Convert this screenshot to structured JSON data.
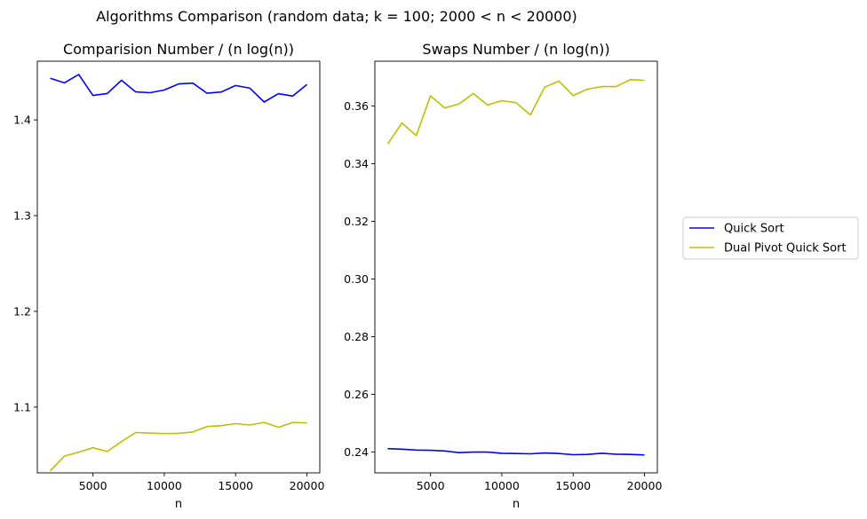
{
  "suptitle": "Algorithms Comparison (random data;  k = 100;  2000 < n < 20000)",
  "legend": {
    "placement": "right-center",
    "entries": [
      {
        "label": "Quick Sort",
        "color": "#0000ff"
      },
      {
        "label": "Dual Pivot Quick Sort",
        "color": "#bfbf00"
      }
    ]
  },
  "chart_data": [
    {
      "type": "line",
      "title": "Comparision Number / (n log(n))",
      "xlabel": "n",
      "ylabel": "",
      "xlim": [
        1100,
        20900
      ],
      "ylim": [
        1.0313,
        1.4613
      ],
      "xticks": [
        5000,
        10000,
        15000,
        20000
      ],
      "yticks": [
        1.1,
        1.2,
        1.3,
        1.4
      ],
      "xtick_labels": [
        "5000",
        "10000",
        "15000",
        "20000"
      ],
      "ytick_labels": [
        "1.1",
        "1.2",
        "1.3",
        "1.4"
      ],
      "grid": false,
      "x": [
        2000,
        3000,
        4000,
        5000,
        6000,
        7000,
        8000,
        9000,
        10000,
        11000,
        12000,
        13000,
        14000,
        15000,
        16000,
        17000,
        18000,
        19000,
        20000
      ],
      "series": [
        {
          "name": "Quick Sort",
          "color": "#0000ff",
          "values": [
            1.4435,
            1.4387,
            1.4475,
            1.4255,
            1.4276,
            1.4414,
            1.4292,
            1.4284,
            1.4312,
            1.4376,
            1.4384,
            1.4278,
            1.4291,
            1.4359,
            1.4331,
            1.4187,
            1.4274,
            1.4249,
            1.4369
          ]
        },
        {
          "name": "Dual Pivot Quick Sort",
          "color": "#bfbf00",
          "values": [
            1.0333,
            1.0488,
            1.053,
            1.0575,
            1.0536,
            1.064,
            1.0735,
            1.0728,
            1.0724,
            1.0726,
            1.074,
            1.0798,
            1.0806,
            1.0827,
            1.0813,
            1.084,
            1.0789,
            1.0839,
            1.0835
          ]
        }
      ]
    },
    {
      "type": "line",
      "title": "Swaps Number / (n log(n))",
      "xlabel": "n",
      "ylabel": "",
      "xlim": [
        1100,
        20900
      ],
      "ylim": [
        0.2328,
        0.3755
      ],
      "xticks": [
        5000,
        10000,
        15000,
        20000
      ],
      "yticks": [
        0.24,
        0.26,
        0.28,
        0.3,
        0.32,
        0.34,
        0.36
      ],
      "xtick_labels": [
        "5000",
        "10000",
        "15000",
        "20000"
      ],
      "ytick_labels": [
        "0.24",
        "0.26",
        "0.28",
        "0.30",
        "0.32",
        "0.34",
        "0.36"
      ],
      "grid": false,
      "x": [
        2000,
        3000,
        4000,
        5000,
        6000,
        7000,
        8000,
        9000,
        10000,
        11000,
        12000,
        13000,
        14000,
        15000,
        16000,
        17000,
        18000,
        19000,
        20000
      ],
      "series": [
        {
          "name": "Quick Sort",
          "color": "#0000ff",
          "values": [
            0.2412,
            0.241,
            0.2407,
            0.2406,
            0.2404,
            0.2398,
            0.24,
            0.24,
            0.2396,
            0.2395,
            0.2394,
            0.2397,
            0.2395,
            0.2391,
            0.2392,
            0.2396,
            0.2393,
            0.2392,
            0.239
          ]
        },
        {
          "name": "Dual Pivot Quick Sort",
          "color": "#bfbf00",
          "values": [
            0.3468,
            0.3541,
            0.3497,
            0.3635,
            0.3593,
            0.3607,
            0.3643,
            0.3603,
            0.3618,
            0.3611,
            0.3569,
            0.3665,
            0.3686,
            0.3636,
            0.3658,
            0.3667,
            0.3667,
            0.3691,
            0.3689
          ]
        }
      ]
    }
  ]
}
